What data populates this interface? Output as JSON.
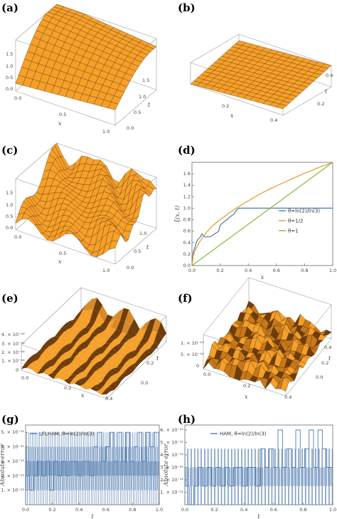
{
  "panels": {
    "a": {
      "label": "(a)",
      "z_ticks": [
        "1.5",
        "1.0",
        "0.5",
        "0.0"
      ],
      "x_ticks": [
        "0.0",
        "0.5",
        "1.0"
      ],
      "t_ticks": [
        "1.5",
        "1.0",
        "0.5",
        "0.0"
      ],
      "x_label": "x",
      "t_label": "t"
    },
    "b": {
      "label": "(b)",
      "x_ticks": [
        "0.2",
        "0.4"
      ],
      "t_ticks": [
        "0.4",
        "0.2"
      ],
      "x_label": "x",
      "t_label": "t"
    },
    "c": {
      "label": "(c)",
      "z_ticks": [
        "1.5",
        "1.0",
        "0.5",
        "0.0"
      ],
      "x_ticks": [
        "0.0",
        "0.5",
        "1.0"
      ],
      "t_ticks": [
        "1.0",
        "0.5",
        "0.0"
      ],
      "x_label": "x",
      "t_label": "t"
    },
    "d": {
      "label": "(d)",
      "y_label": "ξ(x, t)",
      "x_label": "x"
    },
    "e": {
      "label": "(e)",
      "z_ticks": [
        "4. × 10⁻¹⁴",
        "3. × 10⁻¹⁴",
        "2. × 10⁻¹⁴",
        "1. × 10⁻¹⁴",
        "0"
      ],
      "x_ticks": [
        "0.0",
        "0.2",
        "0.4"
      ],
      "t_ticks": [
        "0.4",
        "0.2",
        "0.0"
      ],
      "x_label": "x",
      "t_label": "t"
    },
    "f": {
      "label": "(f)",
      "z_ticks": [
        "1. × 10⁻¹³",
        "5. × 10⁻¹⁴",
        "0"
      ],
      "x_ticks": [
        "0.0",
        "0.2",
        "0.4"
      ],
      "t_ticks": [
        "0.4",
        "0.2",
        "0.0"
      ],
      "x_label": "x",
      "t_label": "t"
    },
    "g": {
      "label": "(g)",
      "y_label": "Absolute error",
      "x_label": "t"
    },
    "h": {
      "label": "(h)",
      "y_label": "Absolute error",
      "x_label": "t"
    }
  },
  "colors": {
    "surface": "#f5a02a",
    "surface_dark": "#b0620e",
    "mesh": "#6b3a08",
    "brown": "#6e3d0a",
    "steel": "#4f7aae",
    "orange": "#e49b2e",
    "green": "#8bb83a"
  },
  "chart_data": [
    {
      "panel": "d",
      "type": "line",
      "xlim": [
        0,
        1
      ],
      "ylim": [
        0,
        1.8
      ],
      "xticks": [
        "0.0",
        "0.2",
        "0.4",
        "0.6",
        "0.8",
        "1.0"
      ],
      "yticks": [
        "0.0",
        "0.2",
        "0.4",
        "0.6",
        "0.8",
        "1.0",
        "1.2",
        "1.4",
        "1.6"
      ],
      "xlabel": "x",
      "ylabel": "ξ(x, t)",
      "legend_position": "center-right",
      "series": [
        {
          "name": "θ=ln(2)/ln(3)",
          "color": "#4f7aae",
          "x": [
            0,
            0.01,
            0.02,
            0.03,
            0.04,
            0.06,
            0.07,
            0.09,
            0.11,
            0.13,
            0.16,
            0.19,
            0.2,
            0.22,
            0.25,
            0.27,
            0.3,
            0.31,
            0.33,
            0.34,
            0.4,
            0.6,
            0.8,
            1.0
          ],
          "y": [
            0,
            0.25,
            0.3,
            0.4,
            0.45,
            0.5,
            0.55,
            0.5,
            0.5,
            0.5,
            0.55,
            0.6,
            0.7,
            0.75,
            0.8,
            0.85,
            0.9,
            0.95,
            1.0,
            1.0,
            1.0,
            1.0,
            1.0,
            1.0
          ]
        },
        {
          "name": "θ=1/2",
          "color": "#e49b2e",
          "x": [
            0,
            0.01,
            0.02,
            0.05,
            0.1,
            0.15,
            0.2,
            0.3,
            0.4,
            0.5,
            0.6,
            0.7,
            0.8,
            0.9,
            1.0
          ],
          "y": [
            0,
            0.18,
            0.25,
            0.4,
            0.57,
            0.7,
            0.8,
            0.98,
            1.13,
            1.27,
            1.39,
            1.5,
            1.61,
            1.71,
            1.8
          ]
        },
        {
          "name": "θ=1",
          "color": "#8bb83a",
          "x": [
            0,
            0.2,
            0.4,
            0.6,
            0.8,
            1.0
          ],
          "y": [
            0,
            0.36,
            0.72,
            1.08,
            1.44,
            1.8
          ]
        }
      ]
    },
    {
      "panel": "g",
      "type": "line",
      "xlim": [
        0,
        1
      ],
      "ylim": [
        0,
        5.5e-11
      ],
      "xticks": [
        "0.0",
        "0.2",
        "0.4",
        "0.6",
        "0.8",
        "1.0"
      ],
      "yticks": [
        "1. × 10⁻¹¹",
        "2. × 10⁻¹¹",
        "3. × 10⁻¹¹",
        "4. × 10⁻¹¹",
        "5. × 10⁻¹¹"
      ],
      "xlabel": "t",
      "ylabel": "Absolute error",
      "legend_position": "top-left",
      "series": [
        {
          "name": "LFLHAM, θ=ln(2)/ln(3)",
          "color": "#4f7aae",
          "levels": [
            0,
            1e-11,
            2e-11,
            3e-11,
            4e-11,
            5e-11
          ],
          "x": [
            0.0,
            0.03,
            0.06,
            0.09,
            0.12,
            0.15,
            0.18,
            0.21,
            0.24,
            0.27,
            0.3,
            0.33,
            0.36,
            0.39,
            0.42,
            0.45,
            0.48,
            0.51,
            0.54,
            0.57,
            0.6,
            0.63,
            0.66,
            0.69,
            0.72,
            0.75,
            0.78,
            0.81,
            0.84,
            0.87,
            0.9,
            0.93,
            0.96,
            1.0
          ],
          "y": [
            2e-11,
            1e-11,
            2e-11,
            3e-11,
            2e-11,
            3e-11,
            1e-11,
            3e-11,
            2e-11,
            3e-11,
            2e-11,
            3e-11,
            3e-11,
            2e-11,
            3e-11,
            3e-11,
            2e-11,
            4e-11,
            5e-11,
            3e-11,
            4e-11,
            5e-11,
            3e-11,
            5e-11,
            3e-11,
            5e-11,
            3e-11,
            4e-11,
            5e-11,
            3e-11,
            5e-11,
            4e-11,
            5e-11,
            3e-11
          ]
        }
      ]
    },
    {
      "panel": "h",
      "type": "line",
      "xlim": [
        0,
        1
      ],
      "ylim": [
        0,
        6.4e-11
      ],
      "xticks": [
        "0.0",
        "0.2",
        "0.4",
        "0.6",
        "0.8",
        "1.0"
      ],
      "yticks": [
        "1. × 10⁻¹¹",
        "2. × 10⁻¹¹",
        "3. × 10⁻¹¹",
        "4. × 10⁻¹¹",
        "5. × 10⁻¹¹",
        "6. × 10⁻¹¹"
      ],
      "xlabel": "t",
      "ylabel": "Absolute error",
      "legend_position": "top-left",
      "series": [
        {
          "name": "HAM, θ=ln(2)/ln(3)",
          "color": "#4f7aae",
          "levels": [
            0,
            1.5e-11,
            3e-11,
            4.5e-11,
            6e-11
          ],
          "x": [
            0.0,
            0.03,
            0.06,
            0.09,
            0.12,
            0.15,
            0.18,
            0.21,
            0.24,
            0.27,
            0.3,
            0.33,
            0.36,
            0.39,
            0.42,
            0.45,
            0.48,
            0.51,
            0.54,
            0.57,
            0.6,
            0.63,
            0.66,
            0.69,
            0.72,
            0.75,
            0.78,
            0.81,
            0.84,
            0.87,
            0.9,
            0.93,
            0.96,
            1.0
          ],
          "y": [
            1.5e-11,
            0,
            1.5e-11,
            3e-11,
            1.5e-11,
            3e-11,
            1.5e-11,
            3e-11,
            1.5e-11,
            3e-11,
            1.5e-11,
            3e-11,
            3e-11,
            1.5e-11,
            3e-11,
            3e-11,
            1.5e-11,
            4.5e-11,
            3e-11,
            4.5e-11,
            3e-11,
            6e-11,
            3e-11,
            4.5e-11,
            3e-11,
            6e-11,
            3e-11,
            4.5e-11,
            6e-11,
            3e-11,
            6e-11,
            4.5e-11,
            3e-11,
            3e-11
          ]
        }
      ]
    }
  ]
}
